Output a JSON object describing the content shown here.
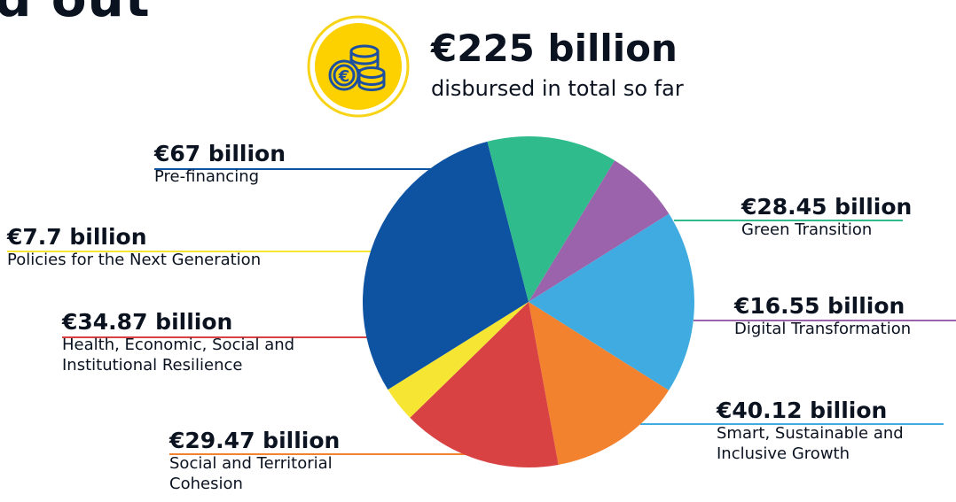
{
  "page_title": "d out",
  "total": {
    "value": "€225 billion",
    "caption": "disbursed in total so far",
    "icon": "coins-euro-icon"
  },
  "colors": {
    "icon_ring": "#f7d417",
    "icon_fill": "#fdd000",
    "icon_ink": "#1d4fa0"
  },
  "chart_data": {
    "type": "pie",
    "unit": "€ billion",
    "slices": [
      {
        "value": "€67 billion",
        "amount": 67,
        "name": "Pre-financing",
        "color": "#0e53a2"
      },
      {
        "value": "€28.45 billion",
        "amount": 28.45,
        "name": "Green Transition",
        "color": "#2fbb8b"
      },
      {
        "value": "€16.55 billion",
        "amount": 16.55,
        "name": "Digital Transformation",
        "color": "#9b63ab"
      },
      {
        "value": "€40.12 billion",
        "amount": 40.12,
        "name": "Smart, Sustainable and\nInclusive Growth",
        "color": "#3fabe0"
      },
      {
        "value": "€29.47 billion",
        "amount": 29.47,
        "name": "Social and Territorial\nCohesion",
        "color": "#f3822f"
      },
      {
        "value": "€34.87 billion",
        "amount": 34.87,
        "name": "Health, Economic, Social and\nInstitutional Resilience",
        "color": "#d94242"
      },
      {
        "value": "€7.7 billion",
        "amount": 7.7,
        "name": "Policies for the Next Generation",
        "color": "#f7e533"
      }
    ]
  }
}
